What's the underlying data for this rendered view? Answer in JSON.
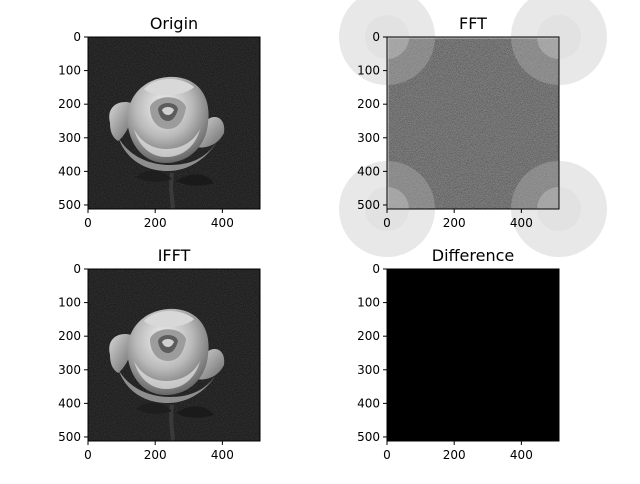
{
  "chart_data": [
    {
      "type": "heatmap",
      "title": "Origin",
      "image": "rose-grayscale-photo",
      "colormap": "gray",
      "xlim": [
        0,
        512
      ],
      "ylim": [
        512,
        0
      ],
      "xticks": [
        "0",
        "200",
        "400"
      ],
      "yticks": [
        "0",
        "100",
        "200",
        "300",
        "400",
        "500"
      ],
      "xlabel": "",
      "ylabel": ""
    },
    {
      "type": "heatmap",
      "title": "FFT",
      "image": "fft-magnitude-spectrum",
      "colormap": "gray",
      "xlim": [
        0,
        512
      ],
      "ylim": [
        512,
        0
      ],
      "xticks": [
        "0",
        "200",
        "400"
      ],
      "yticks": [
        "0",
        "100",
        "200",
        "300",
        "400",
        "500"
      ],
      "xlabel": "",
      "ylabel": ""
    },
    {
      "type": "heatmap",
      "title": "IFFT",
      "image": "rose-grayscale-photo",
      "colormap": "gray",
      "xlim": [
        0,
        512
      ],
      "ylim": [
        512,
        0
      ],
      "xticks": [
        "0",
        "200",
        "400"
      ],
      "yticks": [
        "0",
        "100",
        "200",
        "300",
        "400",
        "500"
      ],
      "xlabel": "",
      "ylabel": ""
    },
    {
      "type": "heatmap",
      "title": "Difference",
      "image": "all-black",
      "colormap": "gray",
      "xlim": [
        0,
        512
      ],
      "ylim": [
        512,
        0
      ],
      "xticks": [
        "0",
        "200",
        "400"
      ],
      "yticks": [
        "0",
        "100",
        "200",
        "300",
        "400",
        "500"
      ],
      "xlabel": "",
      "ylabel": ""
    }
  ]
}
